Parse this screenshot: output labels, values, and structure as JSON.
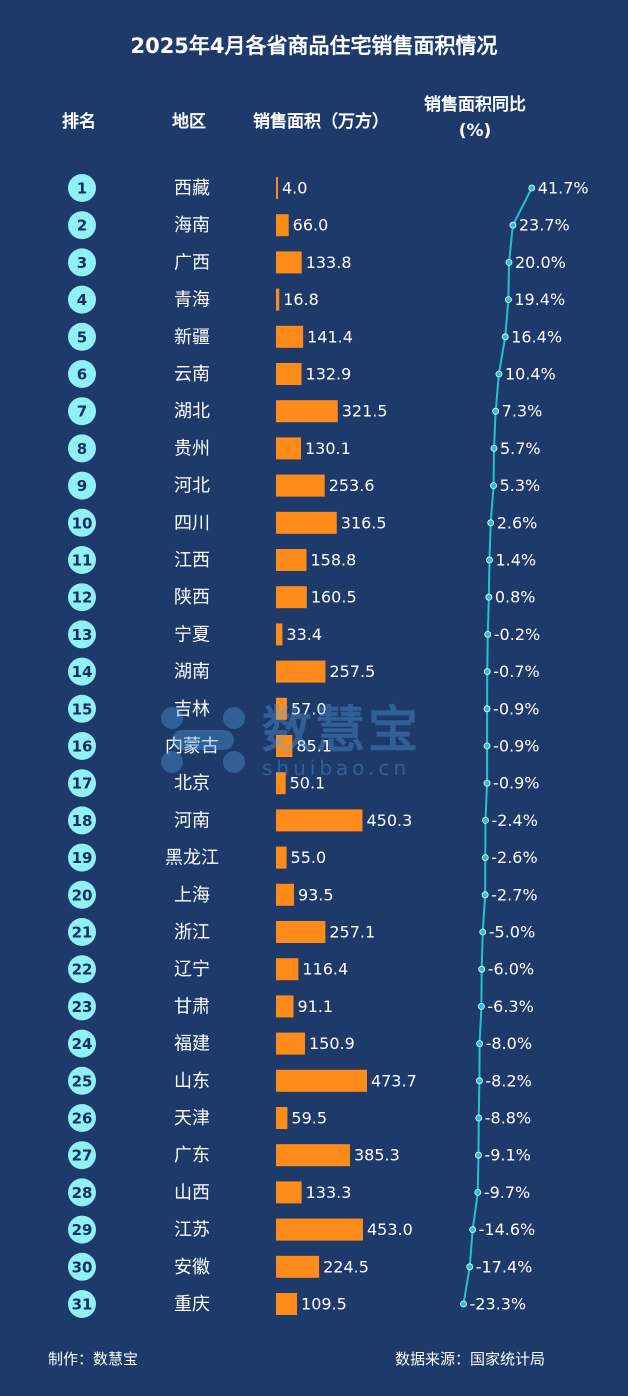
{
  "title": "2025年4月各省商品住宅销售面积情况",
  "headers": {
    "rank": "排名",
    "region": "地区",
    "area": "销售面积（万方）",
    "yoy_line1": "销售面积同比",
    "yoy_line2": "(%)"
  },
  "footer": {
    "maker": "制作：数慧宝",
    "source": "数据来源：国家统计局"
  },
  "watermark": {
    "text": "数慧宝",
    "url": "shuibao.cn"
  },
  "colors": {
    "background": "#1d3a6b",
    "bar": "#ff8c1a",
    "rank_circle": "#8ff0f5",
    "line": "#22c3cf"
  },
  "chart_data": {
    "type": "table",
    "rows": [
      {
        "rank": "1",
        "region": "西藏",
        "area": 4.0,
        "area_label": "4.0",
        "yoy": 41.7,
        "yoy_label": "41.7%"
      },
      {
        "rank": "2",
        "region": "海南",
        "area": 66.0,
        "area_label": "66.0",
        "yoy": 23.7,
        "yoy_label": "23.7%"
      },
      {
        "rank": "3",
        "region": "广西",
        "area": 133.8,
        "area_label": "133.8",
        "yoy": 20.0,
        "yoy_label": "20.0%"
      },
      {
        "rank": "4",
        "region": "青海",
        "area": 16.8,
        "area_label": "16.8",
        "yoy": 19.4,
        "yoy_label": "19.4%"
      },
      {
        "rank": "5",
        "region": "新疆",
        "area": 141.4,
        "area_label": "141.4",
        "yoy": 16.4,
        "yoy_label": "16.4%"
      },
      {
        "rank": "6",
        "region": "云南",
        "area": 132.9,
        "area_label": "132.9",
        "yoy": 10.4,
        "yoy_label": "10.4%"
      },
      {
        "rank": "7",
        "region": "湖北",
        "area": 321.5,
        "area_label": "321.5",
        "yoy": 7.3,
        "yoy_label": "7.3%"
      },
      {
        "rank": "8",
        "region": "贵州",
        "area": 130.1,
        "area_label": "130.1",
        "yoy": 5.7,
        "yoy_label": "5.7%"
      },
      {
        "rank": "9",
        "region": "河北",
        "area": 253.6,
        "area_label": "253.6",
        "yoy": 5.3,
        "yoy_label": "5.3%"
      },
      {
        "rank": "10",
        "region": "四川",
        "area": 316.5,
        "area_label": "316.5",
        "yoy": 2.6,
        "yoy_label": "2.6%"
      },
      {
        "rank": "11",
        "region": "江西",
        "area": 158.8,
        "area_label": "158.8",
        "yoy": 1.4,
        "yoy_label": "1.4%"
      },
      {
        "rank": "12",
        "region": "陕西",
        "area": 160.5,
        "area_label": "160.5",
        "yoy": 0.8,
        "yoy_label": "0.8%"
      },
      {
        "rank": "13",
        "region": "宁夏",
        "area": 33.4,
        "area_label": "33.4",
        "yoy": -0.2,
        "yoy_label": "-0.2%"
      },
      {
        "rank": "14",
        "region": "湖南",
        "area": 257.5,
        "area_label": "257.5",
        "yoy": -0.7,
        "yoy_label": "-0.7%"
      },
      {
        "rank": "15",
        "region": "吉林",
        "area": 57.0,
        "area_label": "57.0",
        "yoy": -0.9,
        "yoy_label": "-0.9%"
      },
      {
        "rank": "16",
        "region": "内蒙古",
        "area": 85.1,
        "area_label": "85.1",
        "yoy": -0.9,
        "yoy_label": "-0.9%"
      },
      {
        "rank": "17",
        "region": "北京",
        "area": 50.1,
        "area_label": "50.1",
        "yoy": -0.9,
        "yoy_label": "-0.9%"
      },
      {
        "rank": "18",
        "region": "河南",
        "area": 450.3,
        "area_label": "450.3",
        "yoy": -2.4,
        "yoy_label": "-2.4%"
      },
      {
        "rank": "19",
        "region": "黑龙江",
        "area": 55.0,
        "area_label": "55.0",
        "yoy": -2.6,
        "yoy_label": "-2.6%"
      },
      {
        "rank": "20",
        "region": "上海",
        "area": 93.5,
        "area_label": "93.5",
        "yoy": -2.7,
        "yoy_label": "-2.7%"
      },
      {
        "rank": "21",
        "region": "浙江",
        "area": 257.1,
        "area_label": "257.1",
        "yoy": -5.0,
        "yoy_label": "-5.0%"
      },
      {
        "rank": "22",
        "region": "辽宁",
        "area": 116.4,
        "area_label": "116.4",
        "yoy": -6.0,
        "yoy_label": "-6.0%"
      },
      {
        "rank": "23",
        "region": "甘肃",
        "area": 91.1,
        "area_label": "91.1",
        "yoy": -6.3,
        "yoy_label": "-6.3%"
      },
      {
        "rank": "24",
        "region": "福建",
        "area": 150.9,
        "area_label": "150.9",
        "yoy": -8.0,
        "yoy_label": "-8.0%"
      },
      {
        "rank": "25",
        "region": "山东",
        "area": 473.7,
        "area_label": "473.7",
        "yoy": -8.2,
        "yoy_label": "-8.2%"
      },
      {
        "rank": "26",
        "region": "天津",
        "area": 59.5,
        "area_label": "59.5",
        "yoy": -8.8,
        "yoy_label": "-8.8%"
      },
      {
        "rank": "27",
        "region": "广东",
        "area": 385.3,
        "area_label": "385.3",
        "yoy": -9.1,
        "yoy_label": "-9.1%"
      },
      {
        "rank": "28",
        "region": "山西",
        "area": 133.3,
        "area_label": "133.3",
        "yoy": -9.7,
        "yoy_label": "-9.7%"
      },
      {
        "rank": "29",
        "region": "江苏",
        "area": 453.0,
        "area_label": "453.0",
        "yoy": -14.6,
        "yoy_label": "-14.6%"
      },
      {
        "rank": "30",
        "region": "安徽",
        "area": 224.5,
        "area_label": "224.5",
        "yoy": -17.4,
        "yoy_label": "-17.4%"
      },
      {
        "rank": "31",
        "region": "重庆",
        "area": 109.5,
        "area_label": "109.5",
        "yoy": -23.3,
        "yoy_label": "-23.3%"
      }
    ]
  }
}
